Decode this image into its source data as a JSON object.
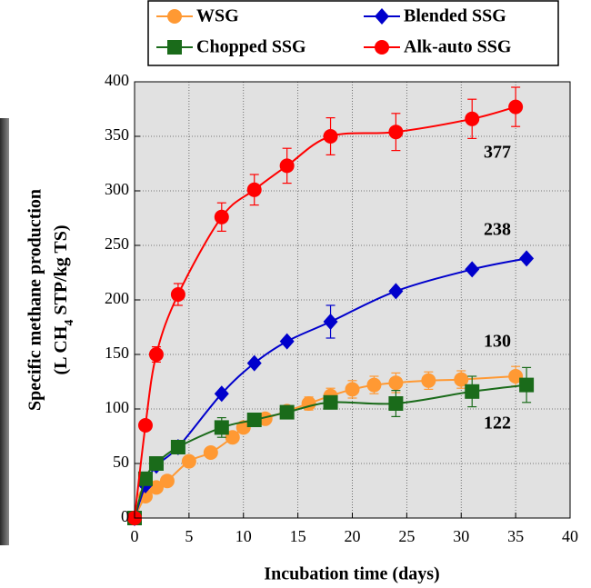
{
  "chart_data": {
    "type": "line",
    "x_label": "Incubation time (days)",
    "y_label": {
      "line1": "Specific methane production",
      "line2_parts": [
        "(L CH",
        "4",
        " STP/kg TS)"
      ]
    },
    "xlim": [
      0,
      40
    ],
    "xticks": [
      0,
      5,
      10,
      15,
      20,
      25,
      30,
      35,
      40
    ],
    "ylim": [
      0,
      400
    ],
    "yticks": [
      0,
      50,
      100,
      150,
      200,
      250,
      300,
      350,
      400
    ],
    "grid": true,
    "legend": "top",
    "series": [
      {
        "name": "WSG",
        "color": "#ff9933",
        "marker": "circle",
        "x": [
          0,
          1,
          2,
          3,
          5,
          7,
          9,
          10,
          12,
          14,
          16,
          18,
          20,
          22,
          24,
          27,
          30,
          35
        ],
        "values": [
          0,
          20,
          28,
          34,
          52,
          60,
          74,
          83,
          91,
          98,
          105,
          112,
          118,
          122,
          124,
          126,
          127,
          130
        ],
        "errors": [
          null,
          null,
          null,
          null,
          null,
          null,
          null,
          null,
          null,
          null,
          6,
          7,
          8,
          8,
          9,
          8,
          8,
          9
        ]
      },
      {
        "name": "Blended SSG",
        "color": "#0000cc",
        "marker": "diamond",
        "x": [
          0,
          1,
          2,
          4,
          8,
          11,
          14,
          18,
          24,
          31,
          36
        ],
        "values": [
          0,
          30,
          48,
          65,
          114,
          142,
          162,
          180,
          208,
          228,
          238
        ],
        "errors": [
          null,
          null,
          null,
          null,
          null,
          null,
          null,
          15,
          null,
          null,
          null
        ]
      },
      {
        "name": "Chopped SSG",
        "color": "#1a6b1a",
        "marker": "square",
        "x": [
          0,
          1,
          2,
          4,
          8,
          11,
          14,
          18,
          24,
          31,
          36
        ],
        "values": [
          0,
          36,
          50,
          65,
          83,
          90,
          97,
          106,
          105,
          116,
          122
        ],
        "errors": [
          null,
          null,
          null,
          null,
          9,
          null,
          null,
          null,
          12,
          14,
          16
        ]
      },
      {
        "name": "Alk-auto SSG",
        "color": "#ff0000",
        "marker": "circle",
        "x": [
          0,
          1,
          2,
          4,
          8,
          11,
          14,
          18,
          24,
          31,
          35
        ],
        "values": [
          0,
          85,
          150,
          205,
          276,
          301,
          323,
          350,
          354,
          366,
          377
        ],
        "errors": [
          null,
          null,
          7,
          10,
          13,
          14,
          16,
          17,
          17,
          18,
          18
        ]
      }
    ],
    "annotations": [
      "377",
      "238",
      "130",
      "122"
    ]
  }
}
